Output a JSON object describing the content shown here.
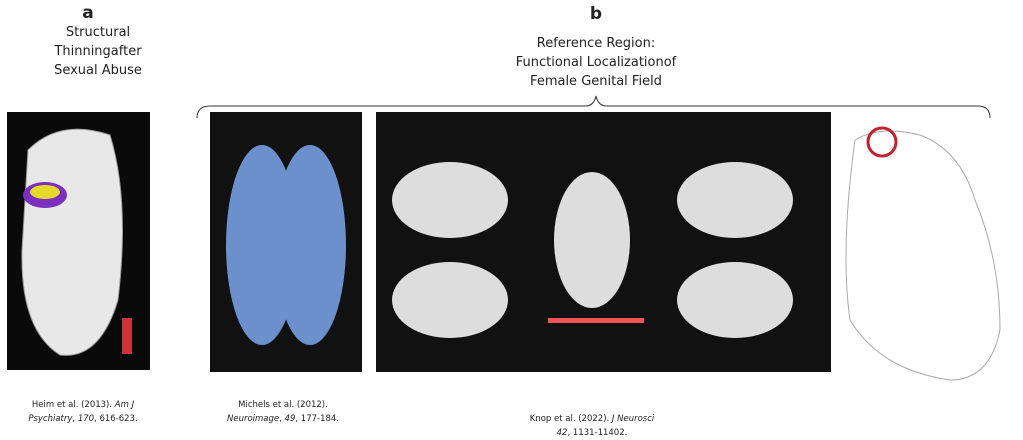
{
  "panel_a": {
    "label": "a",
    "title_lines": [
      "Structural",
      "Thinningafter",
      "Sexual Abuse"
    ],
    "citation": {
      "authors": "Heim et al. (2013).",
      "journal": "Am J",
      "journal2": "Psychiatry",
      "volume": "170",
      "pages": ", 616-623."
    }
  },
  "panel_b": {
    "label": "b",
    "title_lines": [
      "Reference Region:",
      "Functional Localizationof",
      "Female Genital Field"
    ],
    "citations": [
      {
        "authors": "Michels et al. (2012).",
        "journal": "Neuroimage",
        "volume": "49",
        "pages": "177-184."
      },
      {
        "authors": "Knop et al. (2022).",
        "journal": "J Neurosci",
        "volume": "42",
        "pages": "1131-11402."
      }
    ]
  }
}
